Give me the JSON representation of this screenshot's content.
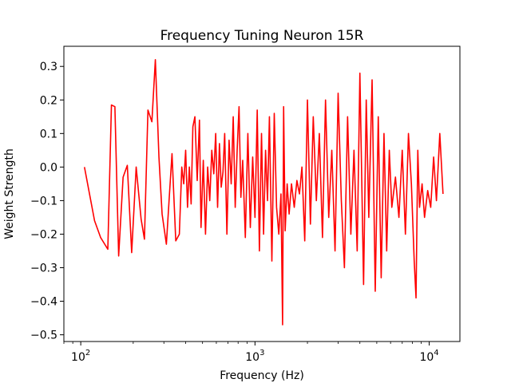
{
  "chart_data": {
    "type": "line",
    "title": "Frequency Tuning Neuron 15R",
    "xlabel": "Frequency (Hz)",
    "ylabel": "Weight Strength",
    "xscale": "log",
    "xlim": [
      80,
      15000
    ],
    "ylim": [
      -0.52,
      0.36
    ],
    "x_ticks": [
      100,
      1000,
      10000
    ],
    "x_tick_labels": [
      {
        "base": "10",
        "exp": "2"
      },
      {
        "base": "10",
        "exp": "3"
      },
      {
        "base": "10",
        "exp": "4"
      }
    ],
    "y_ticks": [
      -0.5,
      -0.4,
      -0.3,
      -0.2,
      -0.1,
      0.0,
      0.1,
      0.2,
      0.3
    ],
    "y_tick_labels": [
      "−0.5",
      "−0.4",
      "−0.3",
      "−0.2",
      "−0.1",
      "0.0",
      "0.1",
      "0.2",
      "0.3"
    ],
    "grid": false,
    "series": [
      {
        "color": "#ff0000",
        "x": [
          105,
          120,
          130,
          143,
          150,
          157,
          165,
          175,
          185,
          196,
          208,
          222,
          232,
          243,
          256,
          268,
          281,
          293,
          310,
          323,
          334,
          351,
          368,
          380,
          390,
          400,
          410,
          420,
          430,
          440,
          452,
          466,
          480,
          490,
          505,
          520,
          535,
          550,
          565,
          580,
          595,
          610,
          625,
          640,
          655,
          670,
          690,
          710,
          730,
          750,
          770,
          790,
          810,
          830,
          850,
          880,
          910,
          940,
          970,
          1000,
          1030,
          1060,
          1090,
          1120,
          1150,
          1180,
          1210,
          1250,
          1290,
          1330,
          1370,
          1410,
          1440,
          1460,
          1490,
          1530,
          1570,
          1620,
          1680,
          1740,
          1800,
          1860,
          1930,
          2000,
          2080,
          2160,
          2250,
          2340,
          2440,
          2540,
          2650,
          2760,
          2880,
          3000,
          3130,
          3260,
          3400,
          3550,
          3700,
          3860,
          4000,
          4200,
          4350,
          4500,
          4700,
          4900,
          5100,
          5300,
          5500,
          5700,
          5900,
          6100,
          6400,
          6700,
          7000,
          7300,
          7600,
          7900,
          8200,
          8400,
          8600,
          8800,
          9100,
          9400,
          9800,
          10200,
          10600,
          11000,
          11500,
          12000
        ],
        "y": [
          0.0,
          -0.16,
          -0.21,
          -0.245,
          0.185,
          0.18,
          -0.265,
          -0.03,
          0.005,
          -0.255,
          0.0,
          -0.155,
          -0.215,
          0.17,
          0.135,
          0.32,
          0.03,
          -0.14,
          -0.23,
          -0.08,
          0.04,
          -0.22,
          -0.2,
          0.0,
          -0.05,
          0.05,
          -0.12,
          0.0,
          -0.11,
          0.12,
          0.15,
          -0.04,
          0.14,
          -0.18,
          0.02,
          -0.2,
          0.0,
          -0.1,
          0.05,
          -0.02,
          0.1,
          -0.12,
          0.07,
          -0.06,
          -0.015,
          0.1,
          -0.2,
          0.08,
          -0.05,
          0.15,
          -0.12,
          0.05,
          0.18,
          -0.09,
          0.02,
          -0.21,
          0.1,
          -0.18,
          0.03,
          -0.15,
          0.17,
          -0.25,
          0.1,
          -0.2,
          0.05,
          -0.1,
          0.15,
          -0.28,
          0.16,
          -0.12,
          -0.2,
          -0.08,
          -0.47,
          0.18,
          -0.19,
          -0.05,
          -0.14,
          -0.05,
          -0.12,
          -0.04,
          -0.08,
          0.0,
          -0.22,
          0.2,
          -0.17,
          0.15,
          -0.1,
          0.1,
          -0.21,
          0.2,
          -0.15,
          0.05,
          -0.25,
          0.22,
          -0.1,
          -0.3,
          0.15,
          -0.2,
          0.05,
          -0.25,
          0.28,
          -0.35,
          0.2,
          -0.15,
          0.26,
          -0.37,
          0.15,
          -0.33,
          0.1,
          -0.25,
          0.05,
          -0.12,
          -0.03,
          -0.15,
          0.05,
          -0.2,
          0.1,
          -0.05,
          -0.28,
          -0.39,
          0.05,
          -0.12,
          -0.05,
          -0.15,
          -0.07,
          -0.12,
          0.03,
          -0.1,
          0.1,
          -0.08
        ]
      }
    ]
  }
}
